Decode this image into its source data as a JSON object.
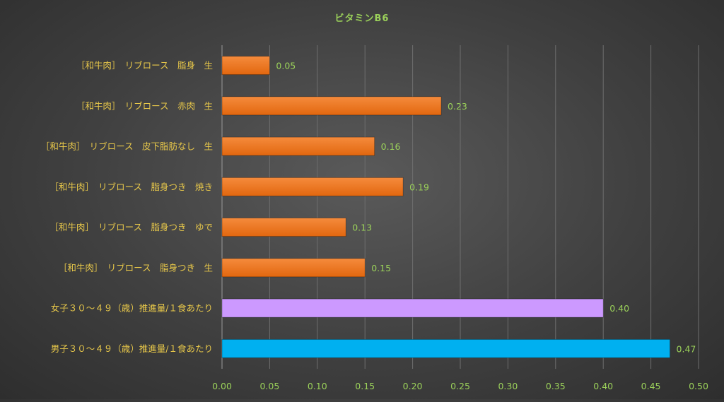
{
  "chart_data": {
    "type": "bar",
    "orientation": "horizontal",
    "title": "ビタミンB6",
    "categories": [
      "［和牛肉］　リブロース　脂身　生",
      "［和牛肉］　リブロース　赤肉　生",
      "［和牛肉］　リブロース　皮下脂肪なし　生",
      "［和牛肉］　リブロース　脂身つき　焼き",
      "［和牛肉］　リブロース　脂身つき　ゆで",
      "［和牛肉］　リブロース　脂身つき　生",
      "女子３０～４９（歳）推進量/１食あたり",
      "男子３０～４９（歳）推進量/１食あたり"
    ],
    "values": [
      0.05,
      0.23,
      0.16,
      0.19,
      0.13,
      0.15,
      0.4,
      0.47
    ],
    "data_labels": [
      "0.05",
      "0.23",
      "0.16",
      "0.19",
      "0.13",
      "0.15",
      "0.40",
      "0.47"
    ],
    "bar_colors": [
      "#f07a24",
      "#f07a24",
      "#f07a24",
      "#f07a24",
      "#f07a24",
      "#f07a24",
      "#cc99ff",
      "#00b0f0"
    ],
    "xlim": [
      0,
      0.5
    ],
    "xticks": [
      0,
      0.05,
      0.1,
      0.15,
      0.2,
      0.25,
      0.3,
      0.35,
      0.4,
      0.45,
      0.5
    ],
    "xtick_labels": [
      "0.00",
      "0.05",
      "0.10",
      "0.15",
      "0.20",
      "0.25",
      "0.30",
      "0.35",
      "0.40",
      "0.45",
      "0.50"
    ],
    "grid": "vertical",
    "legend": "none",
    "colors": {
      "title": "#9bd15a",
      "category_text": "#e8c84a",
      "tick_text": "#9bd15a",
      "data_label_text": "#9bd15a"
    }
  }
}
